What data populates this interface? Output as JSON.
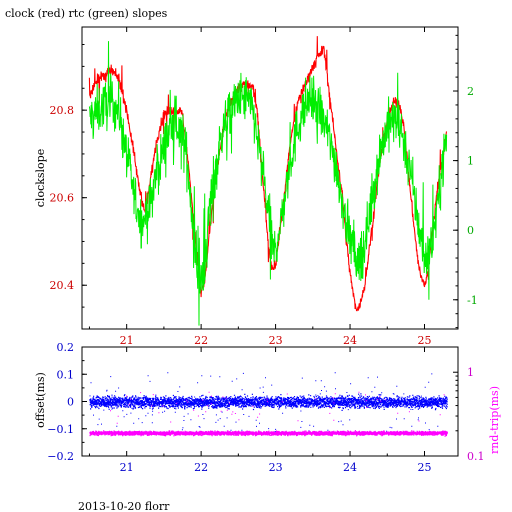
{
  "title": "clock (red) rtc (green) slopes",
  "footer": "2013-10-20 florr",
  "colors": {
    "clock": "#ff0000",
    "rtc": "#00ee00",
    "offset": "#0000ff",
    "rndtrip": "#ff00ff",
    "axis": "#000000",
    "left_tick_top": "#cc0000",
    "right_tick_top": "#00aa00",
    "x_tick_top": "#cc0000",
    "left_tick_bottom": "#0000cc",
    "right_tick_bottom": "#cc00cc",
    "x_tick_bottom": "#0000cc"
  },
  "chart_data": [
    {
      "type": "line",
      "title": "clock (red) rtc (green) slopes",
      "xlabel": "",
      "ylabel": "clockslope",
      "y2label": "",
      "xlim": [
        20.4,
        25.45
      ],
      "ylim": [
        20.3,
        20.99
      ],
      "y2lim": [
        -1.42,
        2.92
      ],
      "x_ticks": [
        "21",
        "22",
        "23",
        "24",
        "25"
      ],
      "y_ticks": [
        "20.4",
        "20.6",
        "20.8"
      ],
      "y2_ticks": [
        "-1",
        "0",
        "1",
        "2"
      ],
      "series": [
        {
          "name": "clock",
          "axis": "left",
          "x": [
            20.5,
            20.55,
            20.6,
            20.7,
            20.8,
            20.9,
            21.0,
            21.1,
            21.15,
            21.2,
            21.25,
            21.3,
            21.4,
            21.5,
            21.6,
            21.7,
            21.75,
            21.8,
            21.85,
            21.9,
            21.95,
            22.0,
            22.05,
            22.1,
            22.2,
            22.3,
            22.4,
            22.5,
            22.6,
            22.7,
            22.75,
            22.8,
            22.85,
            22.9,
            22.95,
            23.0,
            23.1,
            23.2,
            23.3,
            23.4,
            23.5,
            23.6,
            23.65,
            23.7,
            23.8,
            23.9,
            23.95,
            24.0,
            24.05,
            24.1,
            24.2,
            24.3,
            24.4,
            24.5,
            24.6,
            24.65,
            24.7,
            24.75,
            24.8,
            24.85,
            24.9,
            24.95,
            25.0,
            25.05,
            25.1,
            25.2,
            25.3
          ],
          "y": [
            20.83,
            20.85,
            20.87,
            20.88,
            20.89,
            20.87,
            20.8,
            20.7,
            20.64,
            20.6,
            20.56,
            20.62,
            20.73,
            20.79,
            20.8,
            20.8,
            20.79,
            20.72,
            20.64,
            20.55,
            20.45,
            20.38,
            20.41,
            20.5,
            20.65,
            20.76,
            20.82,
            20.85,
            20.86,
            20.85,
            20.8,
            20.7,
            20.6,
            20.5,
            20.44,
            20.45,
            20.58,
            20.73,
            20.82,
            20.86,
            20.9,
            20.93,
            20.94,
            20.87,
            20.73,
            20.6,
            20.5,
            20.43,
            20.37,
            20.34,
            20.4,
            20.54,
            20.68,
            20.78,
            20.82,
            20.82,
            20.79,
            20.72,
            20.63,
            20.55,
            20.47,
            20.42,
            20.4,
            20.43,
            20.52,
            20.65,
            20.75
          ]
        },
        {
          "name": "rtc",
          "axis": "right",
          "x": [
            20.5,
            20.6,
            20.7,
            20.8,
            20.9,
            21.0,
            21.1,
            21.2,
            21.3,
            21.4,
            21.5,
            21.6,
            21.7,
            21.8,
            21.85,
            21.9,
            21.95,
            22.0,
            22.05,
            22.1,
            22.2,
            22.3,
            22.4,
            22.5,
            22.6,
            22.7,
            22.8,
            22.9,
            22.95,
            23.0,
            23.1,
            23.2,
            23.3,
            23.4,
            23.5,
            23.6,
            23.7,
            23.8,
            23.9,
            24.0,
            24.1,
            24.2,
            24.3,
            24.4,
            24.5,
            24.6,
            24.7,
            24.8,
            24.9,
            25.0,
            25.1,
            25.2,
            25.3
          ],
          "y": [
            1.6,
            1.7,
            1.8,
            1.85,
            1.7,
            1.1,
            0.5,
            0.1,
            0.3,
            0.8,
            1.2,
            1.5,
            1.5,
            1.1,
            0.6,
            -0.1,
            -0.6,
            -0.8,
            -0.5,
            0.2,
            0.9,
            1.5,
            1.7,
            1.9,
            1.9,
            1.7,
            1.0,
            0.3,
            -0.2,
            -0.3,
            0.3,
            1.0,
            1.5,
            1.8,
            1.9,
            1.7,
            1.4,
            1.0,
            0.4,
            -0.1,
            -0.5,
            -0.2,
            0.5,
            1.1,
            1.5,
            1.6,
            1.4,
            0.9,
            0.2,
            -0.4,
            -0.2,
            0.6,
            1.4
          ]
        }
      ]
    },
    {
      "type": "scatter",
      "xlabel": "",
      "ylabel": "offset(ms)",
      "y2label": "rnd-trip(ms)",
      "xlim": [
        20.4,
        25.45
      ],
      "ylim": [
        -0.2,
        0.2
      ],
      "y2_scale": "log",
      "y2lim": [
        0.1,
        2.0
      ],
      "x_ticks": [
        "21",
        "22",
        "23",
        "24",
        "25"
      ],
      "y_ticks": [
        "0.2",
        "0.1",
        "0",
        "−0.1",
        "−0.2"
      ],
      "y2_ticks": [
        "1",
        "0.1"
      ],
      "series": [
        {
          "name": "offset",
          "axis": "left",
          "x": [
            20.5,
            25.3
          ],
          "y": [
            0.0,
            0.0
          ],
          "spread": 0.02
        },
        {
          "name": "rnd-trip",
          "axis": "right",
          "x": [
            20.5,
            25.3
          ],
          "y": [
            0.19,
            0.19
          ],
          "spread": 0.015
        }
      ]
    }
  ]
}
